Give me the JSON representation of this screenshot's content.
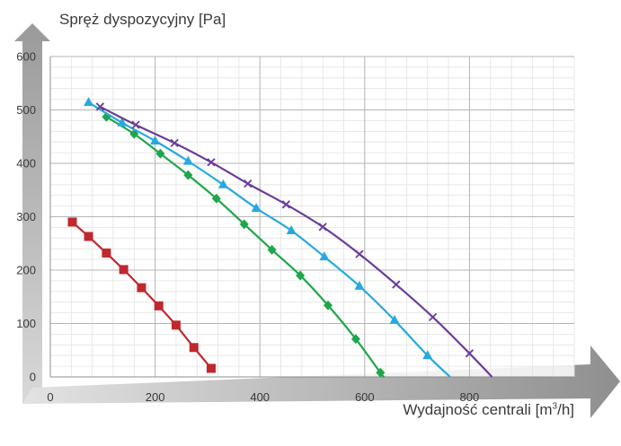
{
  "chart_data": {
    "type": "line",
    "ylabel": "Spręż dyspozycyjny [Pa]",
    "xlabel_main": "Wydajność centrali [m",
    "xlabel_sup": "3",
    "xlabel_end": "/h]",
    "xlim": [
      0,
      1000
    ],
    "ylim": [
      0,
      600
    ],
    "xticks": [
      0,
      200,
      400,
      600,
      800
    ],
    "yticks": [
      0,
      100,
      200,
      300,
      400,
      500,
      600
    ],
    "grid": true,
    "series": [
      {
        "color": "#c0282e",
        "marker": "square",
        "x": [
          42,
          73,
          107,
          140,
          174,
          207,
          240,
          274,
          307
        ],
        "y": [
          290,
          263,
          232,
          201,
          167,
          133,
          97,
          55,
          16
        ]
      },
      {
        "color": "#1fa64a",
        "marker": "diamond",
        "x": [
          107,
          160,
          210,
          263,
          317,
          370,
          423,
          477,
          530,
          583,
          630,
          637
        ],
        "y": [
          487,
          455,
          418,
          378,
          334,
          286,
          238,
          190,
          134,
          71,
          8,
          0
        ]
      },
      {
        "color": "#26a9e0",
        "marker": "triangle",
        "x": [
          73,
          137,
          200,
          263,
          330,
          393,
          460,
          523,
          590,
          657,
          720,
          763
        ],
        "y": [
          514,
          476,
          442,
          404,
          360,
          316,
          274,
          225,
          170,
          106,
          40,
          0
        ]
      },
      {
        "color": "#6a3d9a",
        "marker": "x",
        "x": [
          95,
          163,
          237,
          307,
          377,
          450,
          520,
          590,
          660,
          730,
          800,
          843
        ],
        "y": [
          506,
          472,
          438,
          402,
          362,
          323,
          281,
          230,
          173,
          112,
          44,
          0
        ]
      }
    ]
  }
}
